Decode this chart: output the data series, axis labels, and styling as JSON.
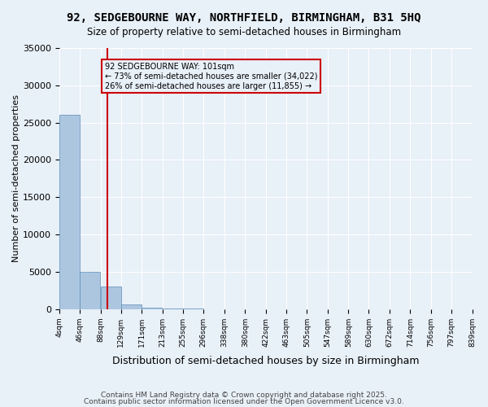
{
  "title": "92, SEDGEBOURNE WAY, NORTHFIELD, BIRMINGHAM, B31 5HQ",
  "subtitle": "Size of property relative to semi-detached houses in Birmingham",
  "xlabel": "Distribution of semi-detached houses by size in Birmingham",
  "ylabel": "Number of semi-detached properties",
  "footer1": "Contains HM Land Registry data © Crown copyright and database right 2025.",
  "footer2": "Contains public sector information licensed under the Open Government Licence v3.0.",
  "property_size": 101,
  "property_label": "92 SEDGEBOURNE WAY: 101sqm",
  "pct_smaller": 73,
  "count_smaller": 34022,
  "pct_larger": 26,
  "count_larger": 11855,
  "bin_edges": [
    4,
    46,
    88,
    129,
    171,
    213,
    255,
    296,
    338,
    380,
    422,
    463,
    505,
    547,
    589,
    630,
    672,
    714,
    756,
    797,
    839
  ],
  "bin_labels": [
    "4sqm",
    "46sqm",
    "88sqm",
    "129sqm",
    "171sqm",
    "213sqm",
    "255sqm",
    "296sqm",
    "338sqm",
    "380sqm",
    "422sqm",
    "463sqm",
    "505sqm",
    "547sqm",
    "589sqm",
    "630sqm",
    "672sqm",
    "714sqm",
    "756sqm",
    "797sqm",
    "839sqm"
  ],
  "bar_heights": [
    26000,
    5000,
    3000,
    600,
    200,
    100,
    50,
    30,
    20,
    15,
    10,
    8,
    5,
    4,
    3,
    2,
    1,
    1,
    0,
    0
  ],
  "bar_color": "#adc6e0",
  "bar_edge_color": "#5a8db5",
  "red_line_color": "#cc0000",
  "annotation_box_color": "#cc0000",
  "background_color": "#e8f0f8",
  "ylim": [
    0,
    35000
  ],
  "yticks": [
    0,
    5000,
    10000,
    15000,
    20000,
    25000,
    30000,
    35000
  ]
}
